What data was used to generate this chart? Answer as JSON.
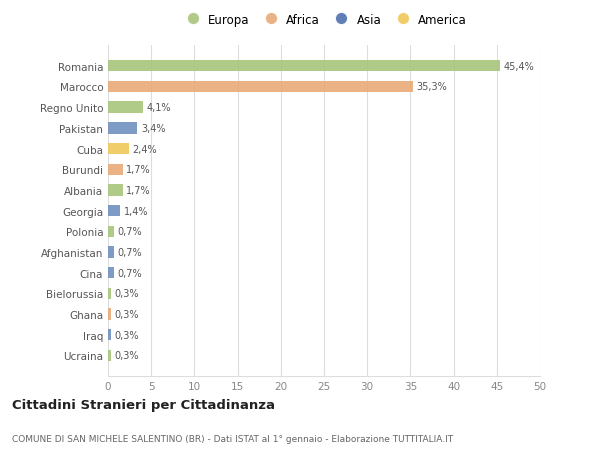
{
  "countries": [
    "Romania",
    "Marocco",
    "Regno Unito",
    "Pakistan",
    "Cuba",
    "Burundi",
    "Albania",
    "Georgia",
    "Polonia",
    "Afghanistan",
    "Cina",
    "Bielorussia",
    "Ghana",
    "Iraq",
    "Ucraina"
  ],
  "values": [
    45.4,
    35.3,
    4.1,
    3.4,
    2.4,
    1.7,
    1.7,
    1.4,
    0.7,
    0.7,
    0.7,
    0.3,
    0.3,
    0.3,
    0.3
  ],
  "labels": [
    "45,4%",
    "35,3%",
    "4,1%",
    "3,4%",
    "2,4%",
    "1,7%",
    "1,7%",
    "1,4%",
    "0,7%",
    "0,7%",
    "0,7%",
    "0,3%",
    "0,3%",
    "0,3%",
    "0,3%"
  ],
  "colors": [
    "#a8c57a",
    "#e8aa78",
    "#a8c57a",
    "#7090c0",
    "#f0c85a",
    "#e8aa78",
    "#a8c57a",
    "#7090c0",
    "#a8c57a",
    "#7090c0",
    "#7090c0",
    "#a8c57a",
    "#e8aa78",
    "#7090c0",
    "#a8c57a"
  ],
  "legend": [
    {
      "label": "Europa",
      "color": "#a8c57a"
    },
    {
      "label": "Africa",
      "color": "#e8aa78"
    },
    {
      "label": "Asia",
      "color": "#5070b0"
    },
    {
      "label": "America",
      "color": "#f0c85a"
    }
  ],
  "title": "Cittadini Stranieri per Cittadinanza",
  "subtitle": "COMUNE DI SAN MICHELE SALENTINO (BR) - Dati ISTAT al 1° gennaio - Elaborazione TUTTITALIA.IT",
  "xlim": [
    0,
    50
  ],
  "xticks": [
    0,
    5,
    10,
    15,
    20,
    25,
    30,
    35,
    40,
    45,
    50
  ],
  "background_color": "#ffffff",
  "grid_color": "#dddddd"
}
